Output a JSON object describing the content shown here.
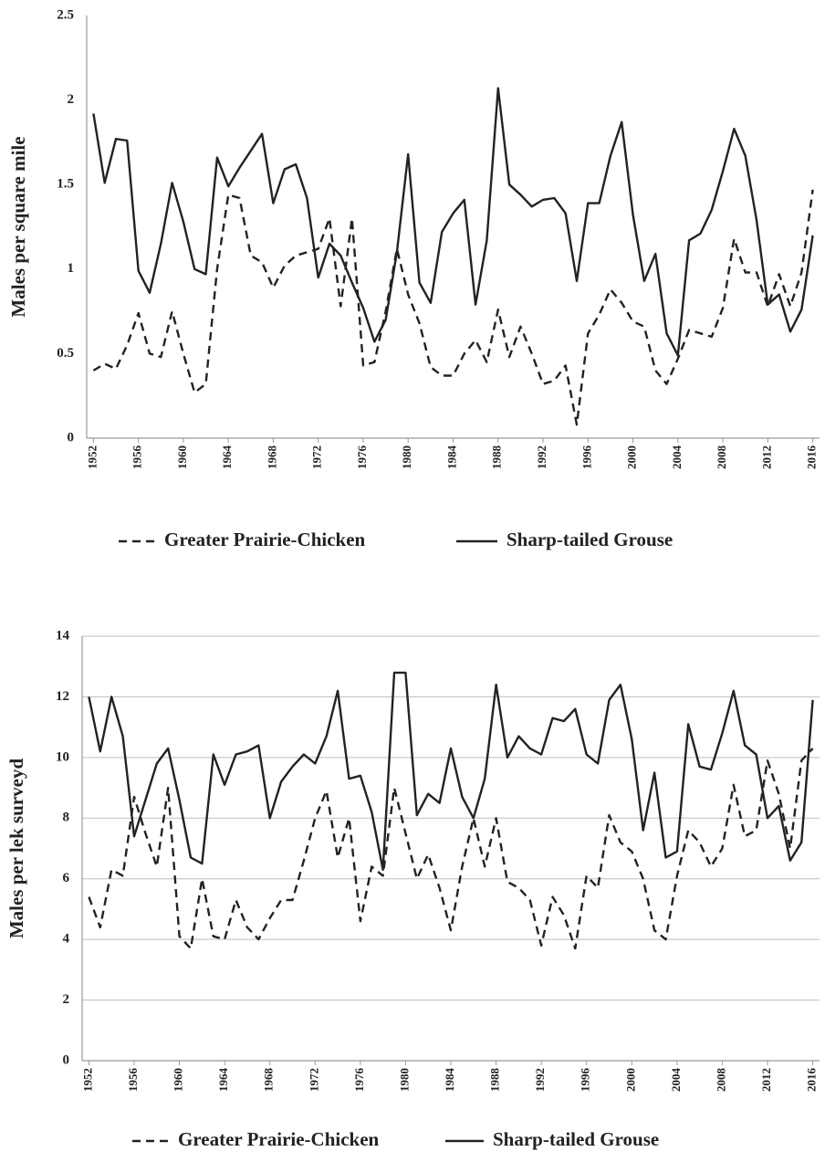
{
  "chart_data": [
    {
      "type": "line",
      "y_label": "Males per square mile",
      "x": [
        1952,
        1953,
        1954,
        1955,
        1956,
        1957,
        1958,
        1959,
        1960,
        1961,
        1962,
        1963,
        1964,
        1965,
        1966,
        1967,
        1968,
        1969,
        1970,
        1971,
        1972,
        1973,
        1974,
        1975,
        1976,
        1977,
        1978,
        1979,
        1980,
        1981,
        1982,
        1983,
        1984,
        1985,
        1986,
        1987,
        1988,
        1989,
        1990,
        1991,
        1992,
        1993,
        1994,
        1995,
        1996,
        1997,
        1998,
        1999,
        2000,
        2001,
        2002,
        2003,
        2004,
        2005,
        2006,
        2007,
        2008,
        2009,
        2010,
        2011,
        2012,
        2013,
        2014,
        2015,
        2016
      ],
      "xlim": [
        1951.4,
        2016.6
      ],
      "xticks": [
        1952,
        1956,
        1960,
        1964,
        1968,
        1972,
        1976,
        1980,
        1984,
        1988,
        1992,
        1996,
        2000,
        2004,
        2008,
        2012,
        2016
      ],
      "ylim": [
        0,
        2.5
      ],
      "yticks": [
        0,
        0.5,
        1,
        1.5,
        2,
        2.5
      ],
      "grid": false,
      "series": [
        {
          "name": "Greater Prairie-Chicken",
          "color": "#222222",
          "dashed": true,
          "values": [
            0.4,
            0.44,
            0.41,
            0.55,
            0.74,
            0.5,
            0.48,
            0.75,
            0.5,
            0.27,
            0.32,
            1.0,
            1.44,
            1.42,
            1.08,
            1.04,
            0.89,
            1.02,
            1.08,
            1.1,
            1.12,
            1.3,
            0.78,
            1.3,
            0.43,
            0.45,
            0.75,
            1.12,
            0.85,
            0.68,
            0.42,
            0.37,
            0.37,
            0.5,
            0.58,
            0.45,
            0.76,
            0.48,
            0.66,
            0.5,
            0.32,
            0.34,
            0.43,
            0.08,
            0.62,
            0.73,
            0.88,
            0.8,
            0.69,
            0.66,
            0.4,
            0.32,
            0.47,
            0.64,
            0.62,
            0.6,
            0.77,
            1.18,
            0.98,
            0.98,
            0.78,
            0.97,
            0.78,
            0.98,
            1.47
          ]
        },
        {
          "name": "Sharp-tailed Grouse",
          "color": "#222222",
          "dashed": false,
          "values": [
            1.92,
            1.51,
            1.77,
            1.76,
            0.99,
            0.86,
            1.15,
            1.51,
            1.28,
            1.0,
            0.97,
            1.66,
            1.49,
            1.6,
            1.7,
            1.8,
            1.39,
            1.59,
            1.62,
            1.42,
            0.95,
            1.15,
            1.08,
            0.92,
            0.77,
            0.57,
            0.7,
            1.1,
            1.68,
            0.92,
            0.8,
            1.22,
            1.33,
            1.41,
            0.79,
            1.17,
            2.07,
            1.5,
            1.44,
            1.37,
            1.41,
            1.42,
            1.33,
            0.93,
            1.39,
            1.39,
            1.67,
            1.87,
            1.32,
            0.93,
            1.09,
            0.62,
            0.49,
            1.17,
            1.21,
            1.35,
            1.58,
            1.83,
            1.67,
            1.29,
            0.79,
            0.85,
            0.63,
            0.76,
            1.2
          ]
        }
      ]
    },
    {
      "type": "line",
      "y_label": "Males per lek surveyd",
      "x": [
        1952,
        1953,
        1954,
        1955,
        1956,
        1957,
        1958,
        1959,
        1960,
        1961,
        1962,
        1963,
        1964,
        1965,
        1966,
        1967,
        1968,
        1969,
        1970,
        1971,
        1972,
        1973,
        1974,
        1975,
        1976,
        1977,
        1978,
        1979,
        1980,
        1981,
        1982,
        1983,
        1984,
        1985,
        1986,
        1987,
        1988,
        1989,
        1990,
        1991,
        1992,
        1993,
        1994,
        1995,
        1996,
        1997,
        1998,
        1999,
        2000,
        2001,
        2002,
        2003,
        2004,
        2005,
        2006,
        2007,
        2008,
        2009,
        2010,
        2011,
        2012,
        2013,
        2014,
        2015,
        2016
      ],
      "xlim": [
        1951.4,
        2016.6
      ],
      "xticks": [
        1952,
        1956,
        1960,
        1964,
        1968,
        1972,
        1976,
        1980,
        1984,
        1988,
        1992,
        1996,
        2000,
        2004,
        2008,
        2012,
        2016
      ],
      "ylim": [
        0,
        14
      ],
      "yticks": [
        0,
        2,
        4,
        6,
        8,
        10,
        12,
        14
      ],
      "grid": true,
      "series": [
        {
          "name": "Greater Prairie-Chicken",
          "color": "#222222",
          "dashed": true,
          "values": [
            5.4,
            4.4,
            6.3,
            6.1,
            8.7,
            7.5,
            6.4,
            9.0,
            4.1,
            3.7,
            6.0,
            4.1,
            4.0,
            5.3,
            4.4,
            4.0,
            4.7,
            5.3,
            5.3,
            6.6,
            8.0,
            8.9,
            6.7,
            8.0,
            4.6,
            6.4,
            6.1,
            9.0,
            7.5,
            6.0,
            6.8,
            5.7,
            4.3,
            6.4,
            8.0,
            6.4,
            8.0,
            5.9,
            5.7,
            5.3,
            3.8,
            5.4,
            4.8,
            3.7,
            6.1,
            5.7,
            8.1,
            7.2,
            6.9,
            6.0,
            4.3,
            4.0,
            6.1,
            7.6,
            7.2,
            6.4,
            7.0,
            9.1,
            7.4,
            7.6,
            9.9,
            8.8,
            7.0,
            9.9,
            10.3
          ]
        },
        {
          "name": "Sharp-tailed Grouse",
          "color": "#222222",
          "dashed": false,
          "values": [
            12.0,
            10.2,
            12.0,
            10.7,
            7.4,
            8.6,
            9.8,
            10.3,
            8.6,
            6.7,
            6.5,
            10.1,
            9.1,
            10.1,
            10.2,
            10.4,
            8.0,
            9.2,
            9.7,
            10.1,
            9.8,
            10.7,
            12.2,
            9.3,
            9.4,
            8.2,
            6.3,
            12.8,
            12.8,
            8.1,
            8.8,
            8.5,
            10.3,
            8.7,
            8.0,
            9.3,
            12.4,
            10.0,
            10.7,
            10.3,
            10.1,
            11.3,
            11.2,
            11.6,
            10.1,
            9.8,
            11.9,
            12.4,
            10.6,
            7.6,
            9.5,
            6.7,
            6.9,
            11.1,
            9.7,
            9.6,
            10.8,
            12.2,
            10.4,
            10.1,
            8.0,
            8.4,
            6.6,
            7.2,
            11.9
          ]
        }
      ]
    }
  ]
}
